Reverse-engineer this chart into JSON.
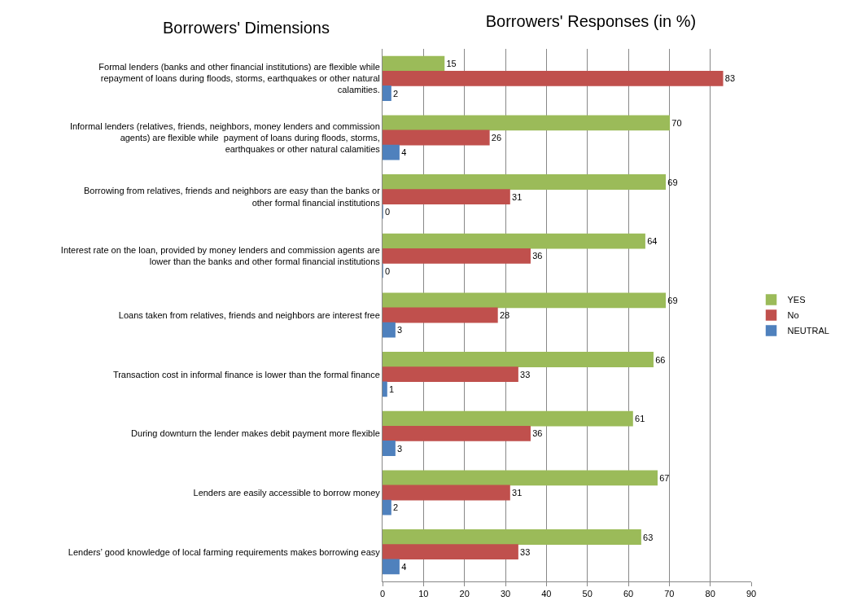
{
  "chart_data": {
    "type": "bar",
    "orientation": "horizontal",
    "title": "Borrowers' Responses (in %)",
    "ylabel": "Borrowers' Dimensions",
    "categories": [
      "Formal lenders (banks and other financial institutions) are flexible while repayment of loans during floods, storms, earthquakes or other natural calamities.",
      "Informal lenders (relatives, friends, neighbors, money lenders and commission agents) are flexible while  payment of loans during floods, storms, earthquakes or other natural calamities",
      "Borrowing from relatives, friends and neighbors are easy than the banks or other formal financial institutions",
      "Interest rate on the loan, provided by money lenders and commission agents are lower than the banks and other formal financial institutions",
      "Loans taken from relatives, friends and neighbors are interest free",
      "Transaction cost in informal finance is lower than the formal finance",
      "During downturn the lender makes debit payment more flexible",
      "Lenders are easily accessible to borrow money",
      "Lenders’ good knowledge of local farming requirements makes borrowing easy"
    ],
    "series": [
      {
        "name": "YES",
        "color": "#9bbb59",
        "values": [
          15,
          70,
          69,
          64,
          69,
          66,
          61,
          67,
          63
        ]
      },
      {
        "name": "No",
        "color": "#c0504d",
        "values": [
          83,
          26,
          31,
          36,
          28,
          33,
          36,
          31,
          33
        ]
      },
      {
        "name": "NEUTRAL",
        "color": "#4f81bd",
        "values": [
          2,
          4,
          0,
          0,
          3,
          1,
          3,
          2,
          4
        ]
      }
    ],
    "xlim": [
      0,
      90
    ],
    "xticks": [
      0,
      10,
      20,
      30,
      40,
      50,
      60,
      70,
      80,
      90
    ],
    "grid": "x",
    "legend": "right",
    "data_labels": true
  }
}
